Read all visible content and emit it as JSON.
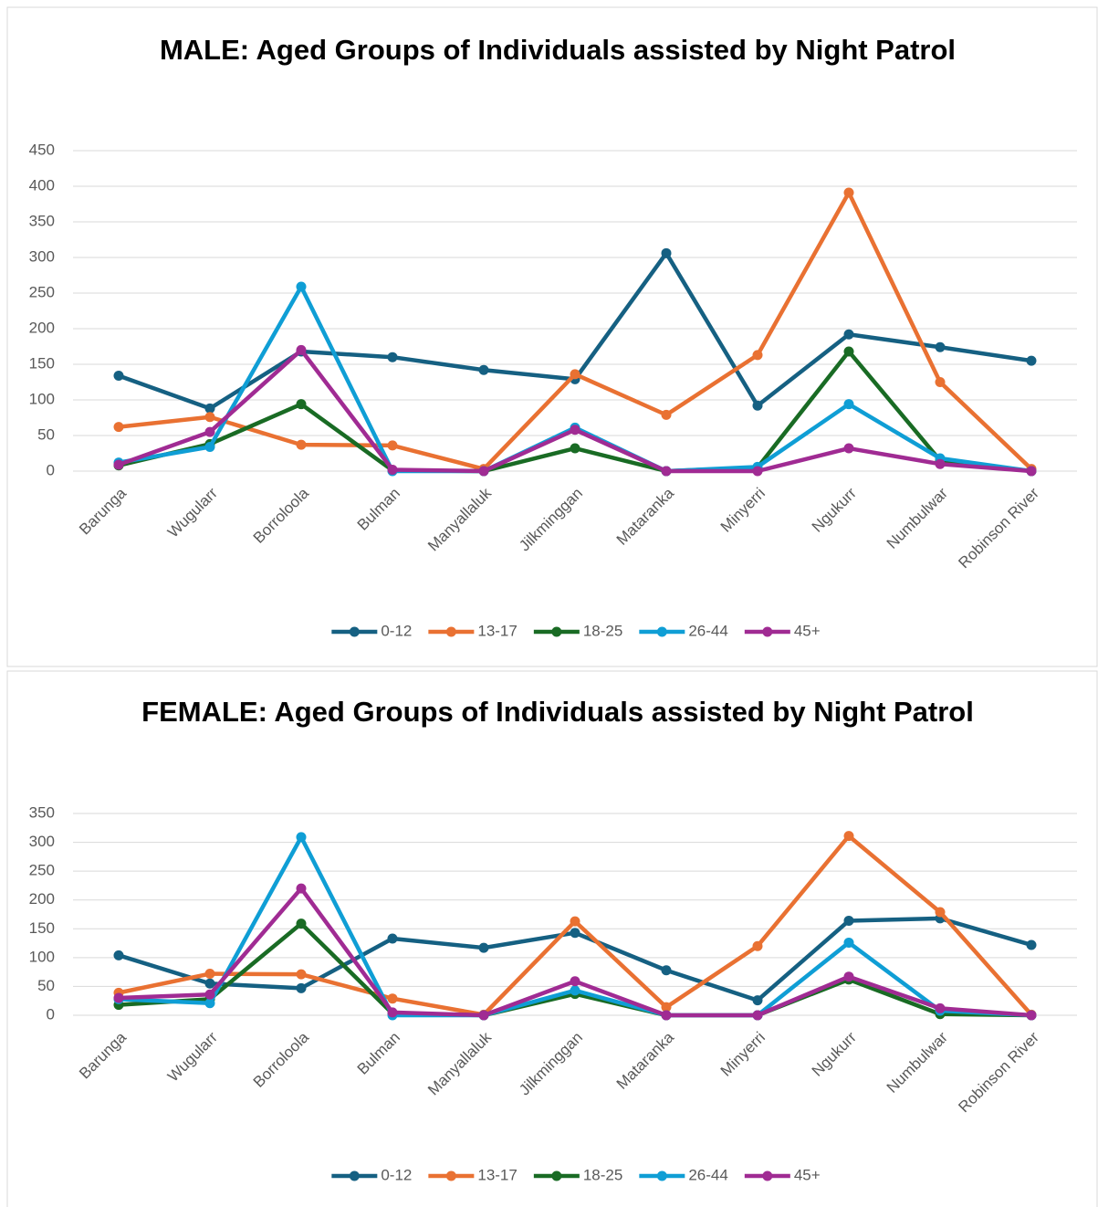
{
  "chart_data": [
    {
      "type": "line",
      "title": "MALE: Aged Groups of Individuals assisted by Night Patrol",
      "categories": [
        "Barunga",
        "Wugularr",
        "Borroloola",
        "Bulman",
        "Manyallaluk",
        "Jilkminggan",
        "Mataranka",
        "Minyerri",
        "Ngukurr",
        "Numbulwar",
        "Robinson River"
      ],
      "series": [
        {
          "name": "0-12",
          "color": "#156082",
          "values": [
            134,
            88,
            168,
            160,
            142,
            129,
            306,
            92,
            192,
            174,
            155
          ]
        },
        {
          "name": "13-17",
          "color": "#e97132",
          "values": [
            62,
            76,
            37,
            36,
            3,
            136,
            79,
            163,
            391,
            125,
            3
          ]
        },
        {
          "name": "18-25",
          "color": "#196b24",
          "values": [
            8,
            38,
            94,
            1,
            0,
            32,
            0,
            5,
            168,
            15,
            0
          ]
        },
        {
          "name": "26-44",
          "color": "#0f9ed5",
          "values": [
            12,
            34,
            259,
            0,
            0,
            61,
            0,
            6,
            94,
            18,
            0
          ]
        },
        {
          "name": "45+",
          "color": "#a02b93",
          "values": [
            9,
            55,
            170,
            2,
            0,
            58,
            0,
            0,
            32,
            10,
            0
          ]
        }
      ],
      "ylim": [
        0,
        450
      ],
      "yticks": [
        0,
        50,
        100,
        150,
        200,
        250,
        300,
        350,
        400,
        450
      ],
      "grid": true,
      "legend": "bottom"
    },
    {
      "type": "line",
      "title": "FEMALE: Aged Groups of Individuals assisted by Night Patrol",
      "categories": [
        "Barunga",
        "Wugularr",
        "Borroloola",
        "Bulman",
        "Manyallaluk",
        "Jilkminggan",
        "Mataranka",
        "Minyerri",
        "Ngukurr",
        "Numbulwar",
        "Robinson River"
      ],
      "series": [
        {
          "name": "0-12",
          "color": "#156082",
          "values": [
            104,
            55,
            47,
            133,
            117,
            143,
            78,
            26,
            164,
            168,
            122
          ]
        },
        {
          "name": "13-17",
          "color": "#e97132",
          "values": [
            39,
            72,
            71,
            29,
            1,
            163,
            14,
            120,
            311,
            179,
            1
          ]
        },
        {
          "name": "18-25",
          "color": "#196b24",
          "values": [
            18,
            28,
            159,
            3,
            0,
            37,
            0,
            0,
            62,
            2,
            0
          ]
        },
        {
          "name": "26-44",
          "color": "#0f9ed5",
          "values": [
            28,
            21,
            309,
            0,
            0,
            43,
            0,
            0,
            126,
            8,
            0
          ]
        },
        {
          "name": "45+",
          "color": "#a02b93",
          "values": [
            30,
            36,
            220,
            5,
            0,
            59,
            0,
            0,
            67,
            12,
            0
          ]
        }
      ],
      "ylim": [
        0,
        350
      ],
      "yticks": [
        0,
        50,
        100,
        150,
        200,
        250,
        300,
        350
      ],
      "grid": true,
      "legend": "bottom"
    }
  ]
}
